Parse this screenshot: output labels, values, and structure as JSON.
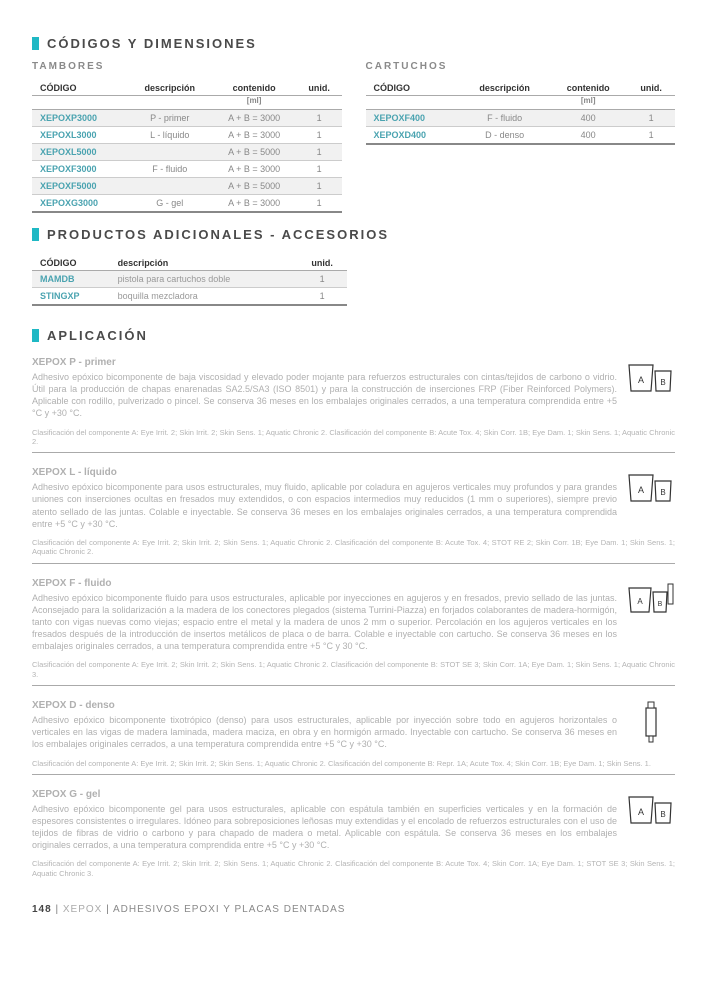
{
  "colors": {
    "accent": "#1fb8c4",
    "codeText": "#4aa3b0",
    "muted": "#b0b0b0",
    "border": "#aaaaaa"
  },
  "section1": {
    "title": "CÓDIGOS Y DIMENSIONES"
  },
  "tambores": {
    "heading": "TAMBORES",
    "columns": [
      "CÓDIGO",
      "descripción",
      "contenido",
      "unid."
    ],
    "unitHeader": "[ml]",
    "rows": [
      {
        "code": "XEPOXP3000",
        "desc": "P - primer",
        "cont": "A + B = 3000",
        "un": "1"
      },
      {
        "code": "XEPOXL3000",
        "desc": "L - líquido",
        "cont": "A + B = 3000",
        "un": "1"
      },
      {
        "code": "XEPOXL5000",
        "desc": "",
        "cont": "A + B = 5000",
        "un": "1"
      },
      {
        "code": "XEPOXF3000",
        "desc": "F - fluido",
        "cont": "A + B = 3000",
        "un": "1"
      },
      {
        "code": "XEPOXF5000",
        "desc": "",
        "cont": "A + B = 5000",
        "un": "1"
      },
      {
        "code": "XEPOXG3000",
        "desc": "G - gel",
        "cont": "A + B = 3000",
        "un": "1"
      }
    ]
  },
  "cartuchos": {
    "heading": "CARTUCHOS",
    "columns": [
      "CÓDIGO",
      "descripción",
      "contenido",
      "unid."
    ],
    "unitHeader": "[ml]",
    "rows": [
      {
        "code": "XEPOXF400",
        "desc": "F - fluido",
        "cont": "400",
        "un": "1"
      },
      {
        "code": "XEPOXD400",
        "desc": "D - denso",
        "cont": "400",
        "un": "1"
      }
    ]
  },
  "section2": {
    "title": "PRODUCTOS ADICIONALES - ACCESORIOS"
  },
  "accesorios": {
    "columns": [
      "CÓDIGO",
      "descripción",
      "unid."
    ],
    "rows": [
      {
        "code": "MAMDB",
        "desc": "pistola para cartuchos doble",
        "un": "1"
      },
      {
        "code": "STINGXP",
        "desc": "boquilla mezcladora",
        "un": "1"
      }
    ]
  },
  "section3": {
    "title": "APLICACIÓN"
  },
  "apps": [
    {
      "title": "XEPOX P - primer",
      "body": "Adhesivo epóxico bicomponente de baja viscosidad y elevado poder mojante para refuerzos estructurales con cintas/tejidos de carbono o vidrio. Útil para la producción de chapas enarenadas SA2.5/SA3 (ISO 8501) y para la construcción de inserciones FRP (Fiber Reinforced Polymers). Aplicable con rodillo, pulverizado o pincel. Se conserva 36 meses en los embalajes originales cerrados, a una temperatura comprendida entre +5 °C y +30 °C.",
      "note": "Clasificación del componente A: Eye Irrit. 2; Skin Irrit. 2; Skin Sens. 1; Aquatic Chronic 2. Clasificación del componente B: Acute Tox. 4; Skin Corr. 1B; Eye Dam. 1; Skin Sens. 1; Aquatic Chronic 2.",
      "icon": "bucket-ab"
    },
    {
      "title": "XEPOX L - líquido",
      "body": "Adhesivo epóxico bicomponente para usos estructurales, muy fluido, aplicable por coladura en agujeros verticales muy profundos y para grandes uniones con inserciones ocultas en fresados muy extendidos, o con espacios intermedios muy reducidos (1 mm o superiores), siempre previo atento sellado de las juntas. Colable e inyectable. Se conserva 36 meses en los embalajes originales cerrados, a una temperatura comprendida entre +5 °C y +30 °C.",
      "note": "Clasificación del componente A: Eye Irrit. 2; Skin Irrit. 2; Skin Sens. 1; Aquatic Chronic 2. Clasificación del componente B: Acute Tox. 4; STOT RE 2; Skin Corr. 1B; Eye Dam. 1; Skin Sens. 1; Aquatic Chronic 2.",
      "icon": "bucket-ab"
    },
    {
      "title": "XEPOX F - fluido",
      "body": "Adhesivo epóxico bicomponente fluido para usos estructurales, aplicable por inyecciones en agujeros y en fresados, previo sellado de las juntas. Aconsejado para la solidarización a la madera de los conectores plegados (sistema Turrini-Piazza) en forjados colaborantes de madera-hormigón, tanto con vigas nuevas como viejas; espacio entre el metal y la madera de unos 2 mm o superior. Percolación en los agujeros verticales en los fresados después de la introducción de insertos metálicos de placa o de barra. Colable e inyectable con cartucho. Se conserva 36 meses en los embalajes originales cerrados, a una temperatura comprendida entre +5 °C y 30 °C.",
      "note": "Clasificación del componente A: Eye Irrit. 2; Skin Irrit. 2; Skin Sens. 1; Aquatic Chronic 2. Clasificación del componente B: STOT SE 3; Skin Corr. 1A; Eye Dam. 1; Skin Sens. 1; Aquatic Chronic 3.",
      "icon": "bucket-cart"
    },
    {
      "title": "XEPOX D - denso",
      "body": "Adhesivo epóxico bicomponente tixotrópico (denso) para usos estructurales, aplicable por inyección sobre todo en agujeros horizontales o verticales en las vigas de madera laminada, madera maciza, en obra y en hormigón armado. Inyectable con cartucho. Se conserva 36 meses en los embalajes originales cerrados, a una temperatura comprendida entre +5 °C y +30 °C.",
      "note": "Clasificación del componente A: Eye Irrit. 2; Skin Irrit. 2; Skin Sens. 1; Aquatic Chronic 2. Clasificación del componente B: Repr. 1A; Acute Tox. 4; Skin Corr. 1B; Eye Dam. 1; Skin Sens. 1.",
      "icon": "cartridge"
    },
    {
      "title": "XEPOX G - gel",
      "body": "Adhesivo epóxico bicomponente gel para usos estructurales, aplicable con espátula también en superficies verticales y en la formación de espesores consistentes o irregulares. Idóneo para sobreposiciones leñosas muy extendidas y el encolado de refuerzos estructurales con el uso de tejidos de fibras de vidrio o carbono y para chapado de madera o metal. Aplicable con espátula. Se conserva 36 meses en los embalajes originales cerrados, a una temperatura comprendida entre +5 °C y +30 °C.",
      "note": "Clasificación del componente A: Eye Irrit. 2; Skin Irrit. 2; Skin Sens. 1; Aquatic Chronic 2. Clasificación del componente B: Acute Tox. 4; Skin Corr. 1A; Eye Dam. 1; STOT SE 3; Skin Sens. 1; Aquatic Chronic 3.",
      "icon": "bucket-ab"
    }
  ],
  "footer": {
    "page": "148",
    "divider": "|",
    "brand": "XEPOX",
    "rest": "ADHESIVOS EPOXI Y PLACAS DENTADAS"
  }
}
